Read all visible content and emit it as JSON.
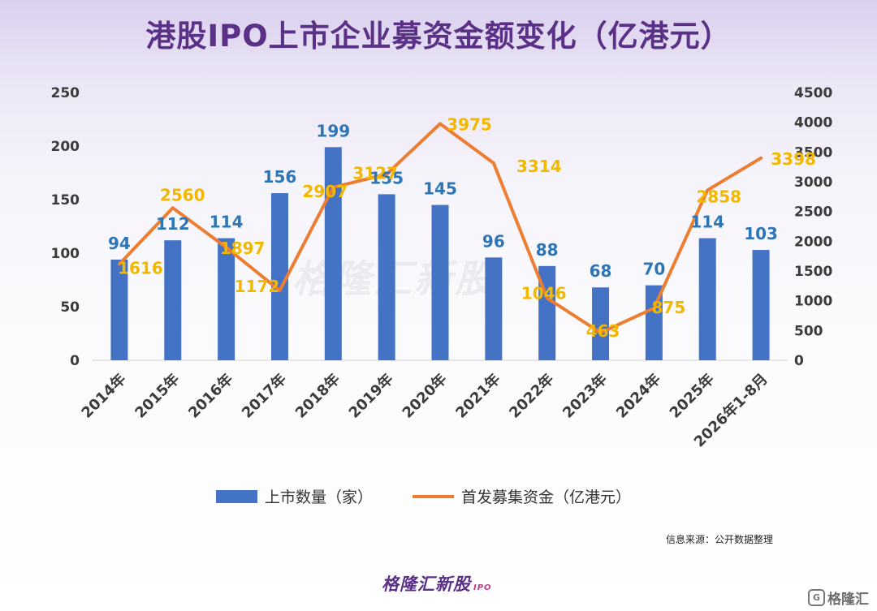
{
  "title": "港股IPO上市企业募资金额变化（亿港元）",
  "source": "信息来源：公开数据整理",
  "footer_logo": "格隆汇新股",
  "footer_logo_sub": "IPO",
  "watermark": "格隆汇新股",
  "corner_brand": "格隆汇",
  "colors": {
    "bar": "#4472c4",
    "bar_label": "#2e75b6",
    "line": "#ed7d31",
    "line_label": "#f2b800",
    "title": "#5b3188"
  },
  "chart_data": {
    "type": "bar",
    "title": "港股IPO上市企业募资金额变化（亿港元）",
    "categories": [
      "2014年",
      "2015年",
      "2016年",
      "2017年",
      "2018年",
      "2019年",
      "2020年",
      "2021年",
      "2022年",
      "2023年",
      "2024年",
      "2025年",
      "2026年1-8月"
    ],
    "series": [
      {
        "name": "上市数量（家）",
        "type": "bar",
        "axis": "left",
        "values": [
          94,
          112,
          114,
          156,
          199,
          155,
          145,
          96,
          88,
          68,
          70,
          114,
          103
        ]
      },
      {
        "name": "首发募集资金（亿港元）",
        "type": "line",
        "axis": "right",
        "values": [
          1616,
          2560,
          1897,
          1172,
          2907,
          3127,
          3975,
          3314,
          1046,
          463,
          875,
          2858,
          3398
        ]
      }
    ],
    "y_left": {
      "min": 0,
      "max": 250,
      "ticks": [
        0,
        50,
        100,
        150,
        200,
        250
      ]
    },
    "y_right": {
      "min": 0,
      "max": 4500,
      "ticks": [
        0,
        500,
        1000,
        1500,
        2000,
        2500,
        3000,
        3500,
        4000,
        4500
      ]
    },
    "grid": false,
    "legend": "bottom-center"
  }
}
